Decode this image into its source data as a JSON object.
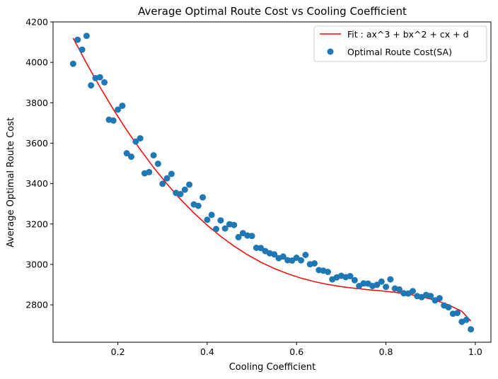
{
  "chart_data": {
    "type": "scatter",
    "title": "Average Optimal Route Cost vs Cooling Coefficient",
    "xlabel": "Cooling Coefficient",
    "ylabel": "Average Optimal Route Cost",
    "xlim": [
      0.055,
      1.035
    ],
    "ylim": [
      2615,
      4200
    ],
    "xticks": [
      0.2,
      0.4,
      0.6,
      0.8,
      1.0
    ],
    "xtick_labels": [
      "0.2",
      "0.4",
      "0.6",
      "0.8",
      "1.0"
    ],
    "yticks": [
      2800,
      3000,
      3200,
      3400,
      3600,
      3800,
      4000,
      4200
    ],
    "ytick_labels": [
      "2800",
      "3000",
      "3200",
      "3400",
      "3600",
      "3800",
      "4000",
      "4200"
    ],
    "grid": false,
    "legend_position": "top-right",
    "series": [
      {
        "name": "Fit : ax^3 + bx^2 + cx + d",
        "kind": "line",
        "color": "#ff0000",
        "x": [
          0.1,
          0.13,
          0.16,
          0.19,
          0.22,
          0.25,
          0.28,
          0.31,
          0.34,
          0.37,
          0.4,
          0.43,
          0.46,
          0.49,
          0.52,
          0.55,
          0.58,
          0.61,
          0.64,
          0.67,
          0.7,
          0.73,
          0.76,
          0.79,
          0.82,
          0.85,
          0.88,
          0.91,
          0.94,
          0.97,
          0.99
        ],
        "y": [
          4120,
          3995,
          3878,
          3767,
          3664,
          3569,
          3480,
          3398,
          3323,
          3255,
          3194,
          3139,
          3091,
          3048,
          3011,
          2980,
          2954,
          2932,
          2915,
          2901,
          2890,
          2882,
          2875,
          2869,
          2862,
          2853,
          2840,
          2823,
          2800,
          2768,
          2720
        ]
      },
      {
        "name": "Optimal Route Cost(SA)",
        "kind": "scatter",
        "color": "#1f77b4",
        "x": [
          0.1,
          0.11,
          0.12,
          0.13,
          0.14,
          0.15,
          0.16,
          0.17,
          0.18,
          0.19,
          0.2,
          0.21,
          0.22,
          0.23,
          0.24,
          0.25,
          0.26,
          0.27,
          0.28,
          0.29,
          0.3,
          0.31,
          0.32,
          0.33,
          0.34,
          0.35,
          0.36,
          0.37,
          0.38,
          0.39,
          0.4,
          0.41,
          0.42,
          0.43,
          0.44,
          0.45,
          0.46,
          0.47,
          0.48,
          0.49,
          0.5,
          0.51,
          0.52,
          0.53,
          0.54,
          0.55,
          0.56,
          0.57,
          0.58,
          0.59,
          0.6,
          0.61,
          0.62,
          0.63,
          0.64,
          0.65,
          0.66,
          0.67,
          0.68,
          0.69,
          0.7,
          0.71,
          0.72,
          0.73,
          0.74,
          0.75,
          0.76,
          0.77,
          0.78,
          0.79,
          0.8,
          0.81,
          0.82,
          0.83,
          0.84,
          0.85,
          0.86,
          0.87,
          0.88,
          0.89,
          0.9,
          0.91,
          0.92,
          0.93,
          0.94,
          0.95,
          0.96,
          0.97,
          0.98,
          0.99
        ],
        "y": [
          3993,
          4112,
          4063,
          4131,
          3886,
          3922,
          3926,
          3901,
          3716,
          3712,
          3766,
          3785,
          3550,
          3533,
          3608,
          3624,
          3451,
          3457,
          3540,
          3498,
          3399,
          3426,
          3448,
          3354,
          3348,
          3370,
          3395,
          3297,
          3290,
          3332,
          3221,
          3245,
          3175,
          3218,
          3178,
          3199,
          3195,
          3135,
          3155,
          3143,
          3141,
          3082,
          3081,
          3066,
          3055,
          3050,
          3031,
          3039,
          3021,
          3019,
          3033,
          3020,
          3047,
          3001,
          3005,
          2972,
          2969,
          2963,
          2926,
          2936,
          2944,
          2937,
          2942,
          2922,
          2893,
          2906,
          2905,
          2893,
          2899,
          2915,
          2889,
          2926,
          2881,
          2876,
          2857,
          2856,
          2868,
          2843,
          2838,
          2849,
          2844,
          2822,
          2833,
          2797,
          2788,
          2756,
          2760,
          2716,
          2726,
          2679
        ]
      }
    ]
  }
}
